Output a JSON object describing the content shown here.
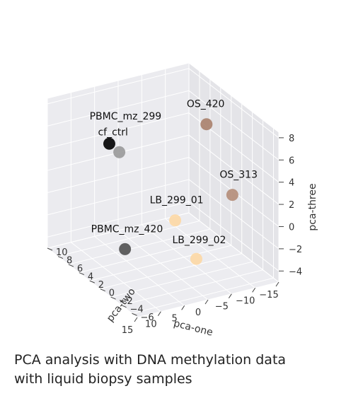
{
  "chart_data": {
    "type": "scatter",
    "projection": "3d",
    "xlabel": "pca-one",
    "ylabel": "pca-two",
    "zlabel": "pca-three",
    "xlim": [
      -15,
      15
    ],
    "ylim": [
      -7,
      10
    ],
    "zlim": [
      -5,
      8.5
    ],
    "x_ticks": [
      -15,
      -10,
      -5,
      0,
      5,
      10,
      15
    ],
    "y_ticks": [
      -6,
      -4,
      -2,
      0,
      2,
      4,
      6,
      8,
      10
    ],
    "z_ticks": [
      -4,
      -2,
      0,
      2,
      4,
      6,
      8
    ],
    "grid": true,
    "points": [
      {
        "label": "OS_420",
        "x": -12,
        "y": 4,
        "z": 5.5,
        "color": "#a9806c"
      },
      {
        "label": "OS_313",
        "x": -13,
        "y": 0,
        "z": 0.5,
        "color": "#b48c78"
      },
      {
        "label": "PBMC_mz_299",
        "x": 2,
        "y": 8,
        "z": 3,
        "color": "#999999"
      },
      {
        "label": "cf_ctrl",
        "x": 3,
        "y": 9,
        "z": 3.5,
        "color": "#000000"
      },
      {
        "label": "LB_299_01",
        "x": -2,
        "y": 1,
        "z": -1,
        "color": "#fdd8a4"
      },
      {
        "label": "LB_299_02",
        "x": -2,
        "y": -3,
        "z": -3,
        "color": "#fdd8a4"
      },
      {
        "label": "PBMC_mz_420",
        "x": 12,
        "y": -2,
        "z": -1,
        "color": "#505050"
      }
    ]
  },
  "caption": {
    "line1": "PCA analysis with DNA methylation data",
    "line2": "with liquid biopsy samples"
  }
}
